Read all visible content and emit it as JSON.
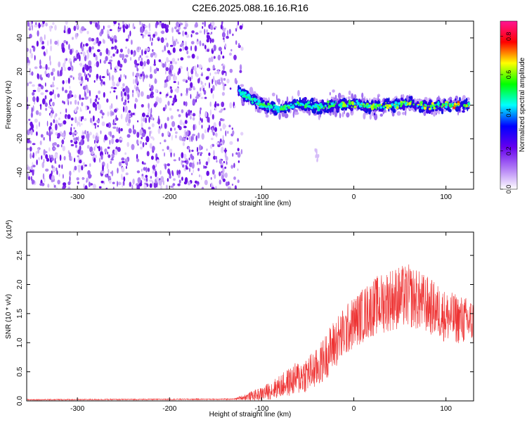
{
  "title": "C2E6.2025.088.16.16.R16",
  "chart_data": [
    {
      "type": "heatmap",
      "xlabel": "Height of straight line (km)",
      "ylabel": "Frequency (Hz)",
      "xlim": [
        -355,
        130
      ],
      "ylim": [
        -50,
        50
      ],
      "xticks": [
        -300,
        -200,
        -100,
        0,
        100
      ],
      "yticks": [
        -40,
        -20,
        0,
        20,
        40
      ],
      "noise_region_x": [
        -355,
        -125
      ],
      "signal_track": {
        "x": [
          -125,
          -115,
          -100,
          -80,
          -60,
          -40,
          -20,
          0,
          20,
          40,
          60,
          80,
          100,
          125
        ],
        "y": [
          8,
          5,
          0,
          -2,
          1,
          -1,
          0,
          1,
          -1,
          0,
          1,
          -1,
          0,
          0
        ]
      },
      "colorbar": {
        "label": "Normalized spectral amplitude",
        "range": [
          0.0,
          0.88
        ],
        "ticks": [
          0.0,
          0.2,
          0.4,
          0.6,
          0.8
        ],
        "colors": [
          "#ffffff",
          "#b07af5",
          "#6600ee",
          "#0000ff",
          "#00ffff",
          "#00ff00",
          "#ffff00",
          "#ff0000",
          "#ff1493"
        ]
      }
    },
    {
      "type": "line",
      "xlabel": "Height of straight line (km)",
      "ylabel": "SNR (10 * v/v)",
      "y_multiplier": "(x10^4)",
      "xlim": [
        -355,
        130
      ],
      "ylim": [
        0,
        2.9
      ],
      "xticks": [
        -300,
        -200,
        -100,
        0,
        100
      ],
      "yticks": [
        "0.0",
        "0.5",
        "1.0",
        "1.5",
        "2.0",
        "2.5"
      ],
      "series_color": "#ee3333",
      "envelope": {
        "x": [
          -355,
          -130,
          -100,
          -80,
          -60,
          -40,
          -20,
          0,
          20,
          40,
          60,
          80,
          100,
          130
        ],
        "y": [
          0.02,
          0.03,
          0.12,
          0.25,
          0.4,
          0.55,
          1.0,
          1.35,
          1.6,
          1.75,
          1.8,
          1.65,
          1.45,
          1.35
        ],
        "spread": [
          0.01,
          0.01,
          0.12,
          0.2,
          0.3,
          0.35,
          0.45,
          0.45,
          0.5,
          0.55,
          0.55,
          0.5,
          0.45,
          0.4
        ]
      }
    }
  ]
}
